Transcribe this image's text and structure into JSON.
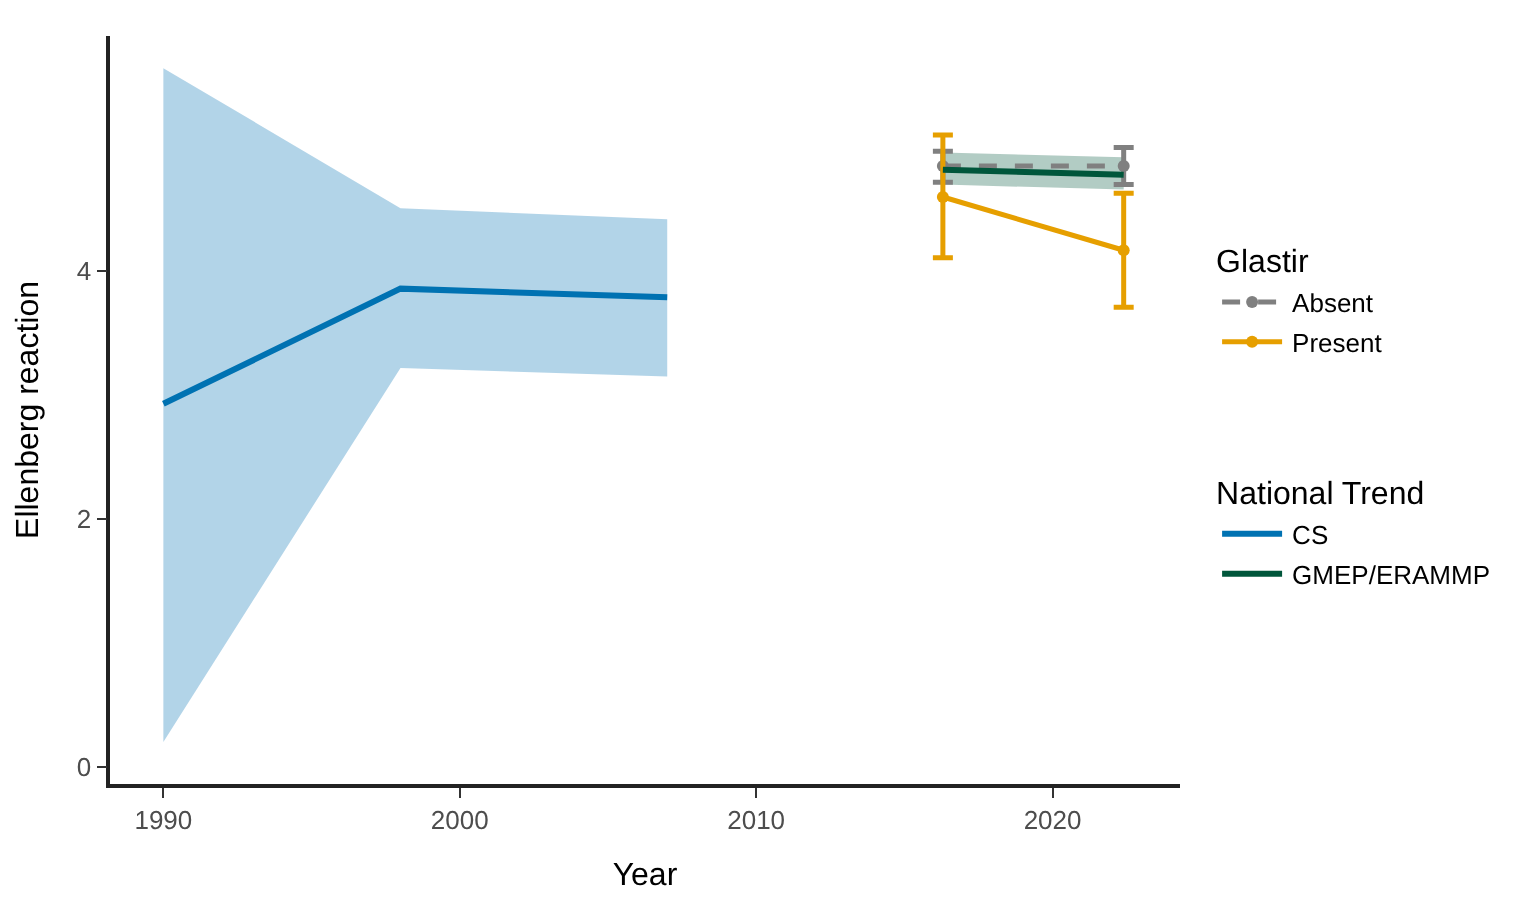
{
  "chart_data": {
    "type": "line",
    "xlabel": "Year",
    "ylabel": "Ellenberg reaction",
    "legend_title": [
      "Glastir",
      "National Trend"
    ],
    "xlim": [
      1988.2,
      2024.3
    ],
    "xticks": [
      1990,
      2000,
      2010,
      2020
    ],
    "ylim": [
      -0.14,
      5.9
    ],
    "yticks": [
      0,
      2,
      4
    ],
    "grid": false,
    "legend": "right",
    "series": [
      {
        "name": "Absent",
        "color": "#808080",
        "line_style": "dashed",
        "marker": "circle",
        "x": [
          2016.3,
          2022.4
        ],
        "values": [
          4.85,
          4.85
        ],
        "errors": [
          [
            4.72,
            4.97
          ],
          [
            4.7,
            5.0
          ]
        ]
      },
      {
        "name": "Present",
        "color": "#e69f00",
        "line_style": "solid",
        "marker": "circle",
        "x": [
          2016.3,
          2022.4
        ],
        "values": [
          4.6,
          4.17
        ],
        "errors": [
          [
            4.11,
            5.1
          ],
          [
            3.71,
            4.63
          ]
        ]
      },
      {
        "name": "CS",
        "color": "#0072b2",
        "line_style": "solid",
        "marker": "none",
        "x": [
          1990,
          1998,
          2007
        ],
        "values": [
          2.93,
          3.86,
          3.79
        ],
        "lower": [
          0.2,
          3.22,
          3.15
        ],
        "upper": [
          5.64,
          4.51,
          4.42
        ]
      },
      {
        "name": "GMEP/ERAMMP",
        "color": "#00563b",
        "line_style": "solid",
        "marker": "none",
        "x": [
          2016.3,
          2022.4
        ],
        "values": [
          4.82,
          4.78
        ],
        "lower": [
          4.7,
          4.66
        ],
        "upper": [
          4.96,
          4.92
        ]
      }
    ]
  }
}
